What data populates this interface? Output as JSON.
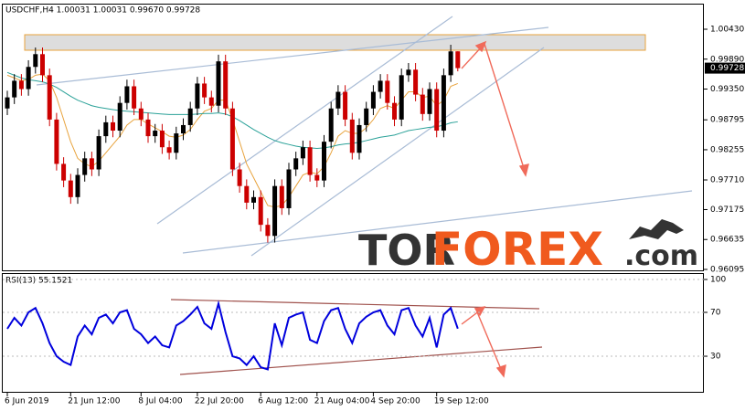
{
  "chart_data": [
    {
      "type": "candlestick",
      "title": "USDCHF,H4 1.00031 1.00031 0.99670 0.99728",
      "categories": [
        "6 Jun 2019",
        null,
        null,
        null,
        null,
        null,
        null,
        null,
        null,
        "21 Jun 12:00",
        null,
        null,
        null,
        null,
        null,
        null,
        null,
        null,
        null,
        "8 Jul 04:00",
        null,
        null,
        null,
        null,
        null,
        null,
        null,
        "22 Jul 20:00",
        null,
        null,
        null,
        null,
        null,
        null,
        null,
        null,
        "6 Aug 12:00",
        null,
        null,
        null,
        null,
        null,
        null,
        null,
        "21 Aug 04:00",
        null,
        null,
        null,
        null,
        null,
        null,
        null,
        "4 Sep 20:00",
        null,
        null,
        null,
        null,
        null,
        null,
        null,
        null,
        "19 Sep 12:00",
        null,
        null,
        null
      ],
      "open": [
        0.99,
        0.992,
        0.995,
        0.9935,
        0.9975,
        0.9998,
        0.996,
        0.988,
        0.98,
        0.977,
        0.974,
        0.978,
        0.981,
        0.979,
        0.985,
        0.9875,
        0.986,
        0.991,
        0.994,
        0.99,
        0.988,
        0.985,
        0.986,
        0.983,
        0.982,
        0.9855,
        0.987,
        0.99,
        0.9945,
        0.992,
        0.9905,
        0.9985,
        0.99,
        0.979,
        0.976,
        0.973,
        0.974,
        0.969,
        0.967,
        0.976,
        0.972,
        0.979,
        0.981,
        0.983,
        0.978,
        0.977,
        0.984,
        0.99,
        0.993,
        0.988,
        0.982,
        0.987,
        0.99,
        0.993,
        0.995,
        0.991,
        0.988,
        0.996,
        0.997,
        0.9925,
        0.989,
        0.9935,
        0.986,
        0.996,
        1.00031
      ],
      "high": [
        0.9932,
        0.9962,
        0.9962,
        0.9987,
        1.001,
        1.001,
        0.9972,
        0.9892,
        0.9812,
        0.9782,
        0.9792,
        0.9822,
        0.9822,
        0.9862,
        0.9887,
        0.9887,
        0.9922,
        0.9952,
        0.9952,
        0.9912,
        0.9892,
        0.9872,
        0.9872,
        0.9842,
        0.9867,
        0.9882,
        0.9912,
        0.9957,
        0.9957,
        0.9932,
        0.9997,
        0.9997,
        0.9912,
        0.9802,
        0.9772,
        0.9752,
        0.9752,
        0.9702,
        0.9772,
        0.9772,
        0.9802,
        0.9822,
        0.9842,
        0.9842,
        0.9792,
        0.9852,
        0.9912,
        0.9942,
        0.9942,
        0.9892,
        0.9882,
        0.9912,
        0.9942,
        0.9962,
        0.9962,
        0.9922,
        0.9972,
        0.9982,
        0.9982,
        0.9937,
        0.9947,
        0.9947,
        0.9972,
        1.0015,
        1.00031
      ],
      "low": [
        0.9888,
        0.9908,
        0.9923,
        0.9923,
        0.9963,
        0.9948,
        0.9868,
        0.9788,
        0.9758,
        0.9728,
        0.9728,
        0.9768,
        0.9778,
        0.9778,
        0.9838,
        0.9848,
        0.9848,
        0.9898,
        0.9888,
        0.9868,
        0.9838,
        0.9838,
        0.9818,
        0.9808,
        0.9808,
        0.9843,
        0.9858,
        0.9888,
        0.9908,
        0.9893,
        0.9893,
        0.9888,
        0.9778,
        0.9748,
        0.9718,
        0.9718,
        0.9678,
        0.9658,
        0.9658,
        0.9708,
        0.9708,
        0.9778,
        0.9798,
        0.9768,
        0.9758,
        0.9758,
        0.9828,
        0.9888,
        0.9868,
        0.9808,
        0.9808,
        0.9858,
        0.9888,
        0.9918,
        0.9898,
        0.9868,
        0.9868,
        0.9948,
        0.9913,
        0.9878,
        0.9878,
        0.9848,
        0.9848,
        0.9948,
        0.9967
      ],
      "close": [
        0.992,
        0.995,
        0.9935,
        0.9975,
        0.9998,
        0.996,
        0.988,
        0.98,
        0.977,
        0.974,
        0.978,
        0.981,
        0.979,
        0.985,
        0.9875,
        0.986,
        0.991,
        0.994,
        0.99,
        0.988,
        0.985,
        0.986,
        0.983,
        0.982,
        0.9855,
        0.987,
        0.99,
        0.9945,
        0.992,
        0.9905,
        0.9985,
        0.99,
        0.979,
        0.976,
        0.973,
        0.974,
        0.969,
        0.967,
        0.976,
        0.972,
        0.979,
        0.981,
        0.983,
        0.978,
        0.977,
        0.984,
        0.99,
        0.993,
        0.988,
        0.982,
        0.987,
        0.99,
        0.993,
        0.995,
        0.991,
        0.988,
        0.996,
        0.997,
        0.9925,
        0.989,
        0.9935,
        0.986,
        0.996,
        1.0003,
        0.99728
      ],
      "up_color": "#000000",
      "down_color": "#cc0000",
      "series": [
        {
          "color": "#e8a33d",
          "values": [
            0.996,
            0.9955,
            0.995,
            0.9952,
            0.996,
            0.9962,
            0.995,
            0.992,
            0.988,
            0.984,
            0.981,
            0.98,
            0.9795,
            0.9805,
            0.982,
            0.9835,
            0.985,
            0.987,
            0.988,
            0.988,
            0.9872,
            0.9865,
            0.9858,
            0.985,
            0.9848,
            0.9852,
            0.9862,
            0.988,
            0.9895,
            0.99,
            0.9915,
            0.9915,
            0.988,
            0.984,
            0.98,
            0.9775,
            0.975,
            0.9725,
            0.9722,
            0.9725,
            0.974,
            0.976,
            0.978,
            0.9785,
            0.9782,
            0.9795,
            0.982,
            0.985,
            0.986,
            0.9855,
            0.9855,
            0.9865,
            0.988,
            0.99,
            0.9905,
            0.99,
            0.9915,
            0.993,
            0.993,
            0.992,
            0.9922,
            0.9905,
            0.9915,
            0.994,
            0.9945
          ]
        },
        {
          "color": "#2aa198",
          "values": [
            0.9965,
            0.996,
            0.9955,
            0.9952,
            0.995,
            0.9948,
            0.9944,
            0.9938,
            0.993,
            0.9922,
            0.9915,
            0.991,
            0.9905,
            0.9902,
            0.99,
            0.9898,
            0.9896,
            0.9895,
            0.9894,
            0.9893,
            0.9892,
            0.9891,
            0.989,
            0.9889,
            0.9889,
            0.9889,
            0.9889,
            0.989,
            0.9891,
            0.9891,
            0.9892,
            0.989,
            0.9885,
            0.9878,
            0.987,
            0.9862,
            0.9855,
            0.9848,
            0.9842,
            0.9838,
            0.9835,
            0.9832,
            0.983,
            0.9829,
            0.9828,
            0.9829,
            0.9831,
            0.9834,
            0.9836,
            0.9837,
            0.9839,
            0.9842,
            0.9845,
            0.9848,
            0.985,
            0.9852,
            0.9856,
            0.986,
            0.9862,
            0.9864,
            0.9866,
            0.9867,
            0.987,
            0.9874,
            0.9876
          ]
        }
      ],
      "ylim": [
        0.96062,
        1.00875
      ],
      "yticks": [
        {
          "value": 1.0043,
          "label": "1.00430"
        },
        {
          "value": 0.9989,
          "label": "0.99890"
        },
        {
          "value": 0.9935,
          "label": "0.99350"
        },
        0.98795,
        0.98255,
        {
          "value": 0.9771,
          "label": "0.97710"
        },
        0.97175,
        0.96635,
        0.96095
      ],
      "last_price": 0.99728,
      "watermark": [
        "TOR",
        "FOREX",
        ".com"
      ]
    },
    {
      "type": "line",
      "title": "RSI(13) 55.1521",
      "series": [
        {
          "color": "#0000dd",
          "values": [
            55,
            65,
            58,
            70,
            74,
            60,
            42,
            30,
            25,
            22,
            48,
            58,
            50,
            65,
            68,
            60,
            70,
            72,
            55,
            50,
            42,
            48,
            40,
            38,
            58,
            62,
            68,
            75,
            60,
            55,
            78,
            52,
            30,
            28,
            22,
            30,
            20,
            18,
            60,
            40,
            65,
            68,
            70,
            45,
            42,
            62,
            72,
            74,
            55,
            42,
            60,
            66,
            70,
            72,
            58,
            50,
            72,
            74,
            58,
            48,
            65,
            38,
            68,
            74,
            55.1521
          ]
        }
      ],
      "ylim": [
        -3.3,
        105
      ],
      "yticks": [
        100,
        70,
        30
      ]
    }
  ]
}
